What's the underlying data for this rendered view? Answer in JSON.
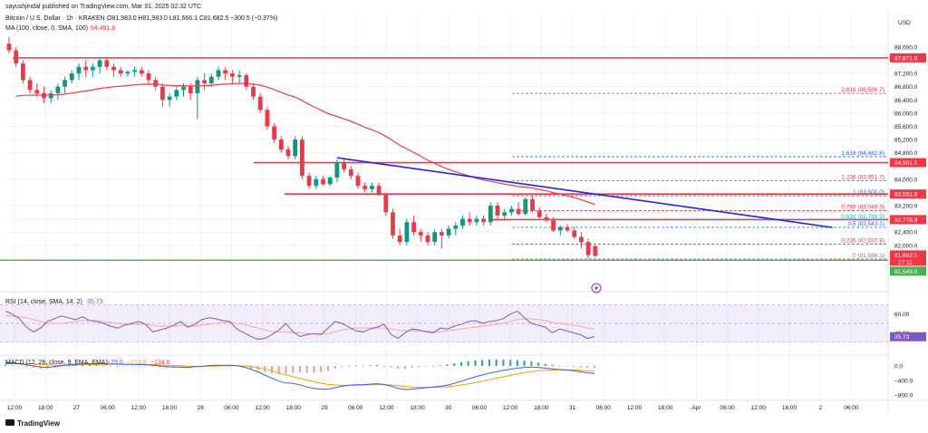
{
  "header": {
    "publisher": "sayushjindal published on TradingView.com, Mar 31, 2025 02:32 UTC",
    "symbol": "Bitcoin / U.S. Dollar · 1h · KRAKEN",
    "ohlc": "O81,983.0  H81,983.0  L81,666.1  C81,682.5  −300.5 (−0.37%)",
    "ma_label": "MA (100, close, 0, SMA, 100)",
    "ma_value": "84,491.8"
  },
  "colors": {
    "up": "#089981",
    "down": "#f23645",
    "ma": "#f23645",
    "trend": "#2424e6",
    "support": "#4caf50",
    "rsi": "#7e57c2",
    "macd": "#2962ff",
    "signal": "#ff9800"
  },
  "chart_data": {
    "type": "candlestick",
    "currency": "USD",
    "price_axis": {
      "ticks": [
        "88,000.0",
        "87,200.0",
        "86,800.0",
        "86,400.0",
        "86,000.0",
        "85,600.0",
        "85,200.0",
        "84,800.0",
        "84,000.0",
        "83,200.0",
        "82,800.0",
        "82,400.0",
        "82,000.0"
      ],
      "ylim": [
        81200,
        88600
      ]
    },
    "time_axis": [
      "12:00",
      "18:00",
      "27",
      "06:00",
      "12:00",
      "18:00",
      "28",
      "06:00",
      "12:00",
      "18:00",
      "29",
      "06:00",
      "12:00",
      "18:00",
      "30",
      "06:00",
      "12:00",
      "18:00",
      "31",
      "06:00",
      "12:00",
      "18:00",
      "Apr",
      "06:00",
      "12:00",
      "18:00",
      "2",
      "06:00"
    ],
    "candles": [
      [
        88100,
        88300,
        87800,
        87900
      ],
      [
        87900,
        88000,
        87400,
        87500
      ],
      [
        87500,
        87600,
        86900,
        87000
      ],
      [
        87000,
        87100,
        86600,
        86700
      ],
      [
        86700,
        86900,
        86500,
        86600
      ],
      [
        86600,
        86800,
        86300,
        86450
      ],
      [
        86450,
        86700,
        86300,
        86600
      ],
      [
        86600,
        86900,
        86400,
        86800
      ],
      [
        86800,
        87100,
        86600,
        87000
      ],
      [
        87000,
        87300,
        86900,
        87200
      ],
      [
        87200,
        87500,
        87000,
        87400
      ],
      [
        87400,
        87600,
        87100,
        87300
      ],
      [
        87300,
        87500,
        87100,
        87400
      ],
      [
        87400,
        87700,
        87200,
        87600
      ],
      [
        87600,
        87700,
        87300,
        87400
      ],
      [
        87400,
        87500,
        87100,
        87300
      ],
      [
        87300,
        87400,
        87100,
        87200
      ],
      [
        87200,
        87300,
        87100,
        87250
      ],
      [
        87250,
        87400,
        87100,
        87300
      ],
      [
        87300,
        87400,
        87100,
        87200
      ],
      [
        87200,
        87300,
        86900,
        87000
      ],
      [
        87000,
        87100,
        86700,
        86800
      ],
      [
        86800,
        86900,
        86200,
        86400
      ],
      [
        86400,
        86600,
        86200,
        86500
      ],
      [
        86500,
        86800,
        86400,
        86700
      ],
      [
        86700,
        86900,
        86500,
        86800
      ],
      [
        86800,
        86900,
        86400,
        86600
      ],
      [
        86600,
        87100,
        85800,
        87000
      ],
      [
        87000,
        87200,
        86700,
        86900
      ],
      [
        86900,
        87200,
        86800,
        87100
      ],
      [
        87100,
        87400,
        87000,
        87300
      ],
      [
        87300,
        87400,
        87000,
        87200
      ],
      [
        87200,
        87300,
        86900,
        87100
      ],
      [
        87100,
        87300,
        86900,
        87150
      ],
      [
        87150,
        87200,
        86700,
        86800
      ],
      [
        86800,
        86900,
        86400,
        86500
      ],
      [
        86500,
        86600,
        86000,
        86100
      ],
      [
        86100,
        86200,
        85500,
        85600
      ],
      [
        85600,
        85700,
        85100,
        85200
      ],
      [
        85200,
        85300,
        84800,
        84900
      ],
      [
        84900,
        85000,
        84600,
        84700
      ],
      [
        84700,
        85300,
        84600,
        85200
      ],
      [
        85200,
        85300,
        84000,
        84100
      ],
      [
        84100,
        84200,
        83700,
        83800
      ],
      [
        83800,
        84100,
        83700,
        84000
      ],
      [
        84000,
        84100,
        83800,
        83850
      ],
      [
        83850,
        84100,
        83800,
        84050
      ],
      [
        84050,
        84600,
        83900,
        84500
      ],
      [
        84500,
        84600,
        84200,
        84300
      ],
      [
        84300,
        84400,
        84000,
        84100
      ],
      [
        84100,
        84200,
        83700,
        83800
      ],
      [
        83800,
        83900,
        83600,
        83700
      ],
      [
        83700,
        83900,
        83600,
        83800
      ],
      [
        83800,
        83900,
        83500,
        83550
      ],
      [
        83550,
        83600,
        82900,
        83000
      ],
      [
        83000,
        83100,
        82200,
        82300
      ],
      [
        82300,
        82500,
        82000,
        82100
      ],
      [
        82100,
        82800,
        82000,
        82700
      ],
      [
        82700,
        82900,
        82300,
        82400
      ],
      [
        82400,
        82500,
        82100,
        82300
      ],
      [
        82300,
        82400,
        82000,
        82100
      ],
      [
        82100,
        82500,
        82000,
        82400
      ],
      [
        82400,
        82500,
        81900,
        82300
      ],
      [
        82300,
        82600,
        82200,
        82500
      ],
      [
        82500,
        82700,
        82300,
        82600
      ],
      [
        82600,
        82900,
        82500,
        82800
      ],
      [
        82800,
        83000,
        82600,
        82700
      ],
      [
        82700,
        82900,
        82600,
        82800
      ],
      [
        82800,
        82900,
        82600,
        82700
      ],
      [
        82700,
        83300,
        82600,
        83200
      ],
      [
        83200,
        83300,
        82800,
        82900
      ],
      [
        82900,
        83100,
        82800,
        83000
      ],
      [
        83000,
        83200,
        82900,
        83100
      ],
      [
        83100,
        83300,
        82900,
        82950
      ],
      [
        82950,
        83450,
        82900,
        83400
      ],
      [
        83400,
        83500,
        83000,
        83050
      ],
      [
        83050,
        83150,
        82800,
        82850
      ],
      [
        82850,
        82950,
        82700,
        82750
      ],
      [
        82750,
        82850,
        82400,
        82450
      ],
      [
        82450,
        82600,
        82300,
        82550
      ],
      [
        82550,
        82650,
        82400,
        82450
      ],
      [
        82450,
        82550,
        82200,
        82250
      ],
      [
        82250,
        82400,
        81900,
        82100
      ],
      [
        82100,
        82200,
        81600,
        81700
      ],
      [
        81983,
        81983,
        81666,
        81682
      ]
    ],
    "moving_average": {
      "label": "MA (100, close, 0, SMA, 100)",
      "value": 84491.8
    },
    "levels": [
      {
        "price": 87671.9,
        "label": "87,671.9"
      },
      {
        "price": 84501.5,
        "label": "84,501.5"
      },
      {
        "price": 83551.8,
        "label": "83,551.8"
      },
      {
        "price": 82778.8,
        "label": "82,778.8"
      }
    ],
    "current_price": {
      "label": "81,682.5",
      "countdown": "27:11"
    },
    "support": {
      "price": 81549.0,
      "label": "81,549.0"
    },
    "fib": [
      {
        "ratio": "2.618",
        "price": 86596.7,
        "label": "2.618 (86,596.7)",
        "color": "#f23645"
      },
      {
        "ratio": "1.618",
        "price": 84682.8,
        "label": "1.618 (84,682.8)",
        "color": "#2962ff"
      },
      {
        "ratio": "1.236",
        "price": 83951.7,
        "label": "1.236 (83,951.7)",
        "color": "#f23645"
      },
      {
        "ratio": "1",
        "price": 83500.0,
        "label": "1 (83,500.0)",
        "color": "#2962ff"
      },
      {
        "ratio": "0.786",
        "price": 83048.3,
        "label": "0.786 (83,048.3)",
        "color": "#f23645"
      },
      {
        "ratio": "0.618",
        "price": 82768.9,
        "label": "0.618 (82,768.9)",
        "color": "#00bcd4"
      },
      {
        "ratio": "0.5",
        "price": 82543.1,
        "label": "0.5 (82,543.1)",
        "color": "#2962ff"
      },
      {
        "ratio": "0.236",
        "price": 82037.8,
        "label": "0.236 (82,037.8)",
        "color": "#f23645"
      },
      {
        "ratio": "0",
        "price": 81586.1,
        "label": "0 (81,586.1)",
        "color": "#787b86"
      }
    ],
    "trendline": {
      "start": [
        47,
        84650
      ],
      "end": [
        118,
        82540
      ]
    },
    "rsi": {
      "label": "RSI (14, close, SMA, 14, 2)",
      "value": "35.73",
      "ticks": [
        "60.00",
        "40.00"
      ],
      "ylim": [
        20,
        80
      ],
      "values": [
        63,
        60,
        55,
        46,
        41,
        45,
        52,
        55,
        58,
        56,
        54,
        57,
        53,
        52,
        50,
        47,
        45,
        48,
        50,
        52,
        49,
        41,
        43,
        45,
        48,
        52,
        46,
        49,
        54,
        56,
        55,
        53,
        52,
        44,
        40,
        36,
        33,
        34,
        38,
        43,
        50,
        41,
        36,
        38,
        39,
        38,
        45,
        52,
        50,
        46,
        42,
        41,
        44,
        46,
        49,
        38,
        34,
        40,
        44,
        43,
        41,
        40,
        45,
        44,
        47,
        49,
        52,
        53,
        50,
        52,
        53,
        55,
        60,
        63,
        56,
        50,
        48,
        46,
        40,
        44,
        42,
        40,
        38,
        34,
        36
      ],
      "signal": [
        58,
        58,
        57,
        56,
        54,
        52,
        50,
        50,
        50,
        51,
        52,
        53,
        53,
        53,
        52,
        51,
        50,
        49,
        49,
        49,
        49,
        48,
        47,
        47,
        47,
        48,
        47,
        47,
        48,
        49,
        50,
        51,
        51,
        50,
        49,
        47,
        45,
        43,
        41,
        41,
        41,
        40,
        40,
        39,
        39,
        39,
        39,
        41,
        43,
        44,
        45,
        45,
        45,
        45,
        45,
        44,
        43,
        42,
        42,
        42,
        42,
        41,
        41,
        42,
        43,
        44,
        45,
        46,
        47,
        48,
        49,
        50,
        52,
        54,
        55,
        55,
        54,
        53,
        51,
        50,
        49,
        48,
        47,
        45,
        44
      ]
    },
    "macd": {
      "label": "MACD (12, 26, close, 9, EMA, EMA)",
      "values_text": [
        "−79.0",
        "−213.6",
        "−134.6"
      ],
      "ticks": [
        "0.0",
        "−400.0",
        "−800.0"
      ],
      "ylim": [
        -900,
        200
      ],
      "macd_line": [
        90,
        80,
        60,
        30,
        0,
        -30,
        -40,
        -20,
        10,
        30,
        45,
        55,
        60,
        65,
        60,
        55,
        50,
        45,
        45,
        40,
        30,
        20,
        0,
        -20,
        -30,
        -30,
        -40,
        -20,
        -10,
        10,
        20,
        20,
        20,
        10,
        -30,
        -90,
        -160,
        -250,
        -340,
        -420,
        -470,
        -480,
        -520,
        -580,
        -620,
        -640,
        -640,
        -600,
        -560,
        -530,
        -520,
        -520,
        -500,
        -490,
        -510,
        -560,
        -620,
        -650,
        -640,
        -620,
        -600,
        -580,
        -560,
        -530,
        -480,
        -420,
        -360,
        -300,
        -250,
        -200,
        -160,
        -120,
        -90,
        -60,
        -40,
        -30,
        -40,
        -60,
        -80,
        -100,
        -110,
        -130,
        -160,
        -190,
        -210
      ],
      "signal_line": [
        60,
        62,
        62,
        58,
        50,
        40,
        30,
        20,
        16,
        18,
        24,
        30,
        36,
        42,
        46,
        48,
        50,
        50,
        50,
        48,
        44,
        40,
        32,
        22,
        12,
        4,
        -6,
        -10,
        -10,
        -6,
        -2,
        2,
        6,
        6,
        0,
        -18,
        -46,
        -86,
        -136,
        -192,
        -248,
        -294,
        -340,
        -388,
        -434,
        -476,
        -508,
        -526,
        -534,
        -534,
        -530,
        -528,
        -522,
        -516,
        -516,
        -524,
        -544,
        -566,
        -580,
        -588,
        -590,
        -588,
        -582,
        -572,
        -552,
        -526,
        -494,
        -458,
        -420,
        -380,
        -340,
        -300,
        -262,
        -222,
        -186,
        -156,
        -134,
        -120,
        -112,
        -108,
        -106,
        -110,
        -120,
        -134,
        -150
      ]
    }
  },
  "branding": {
    "logo_text": "TradingView"
  }
}
